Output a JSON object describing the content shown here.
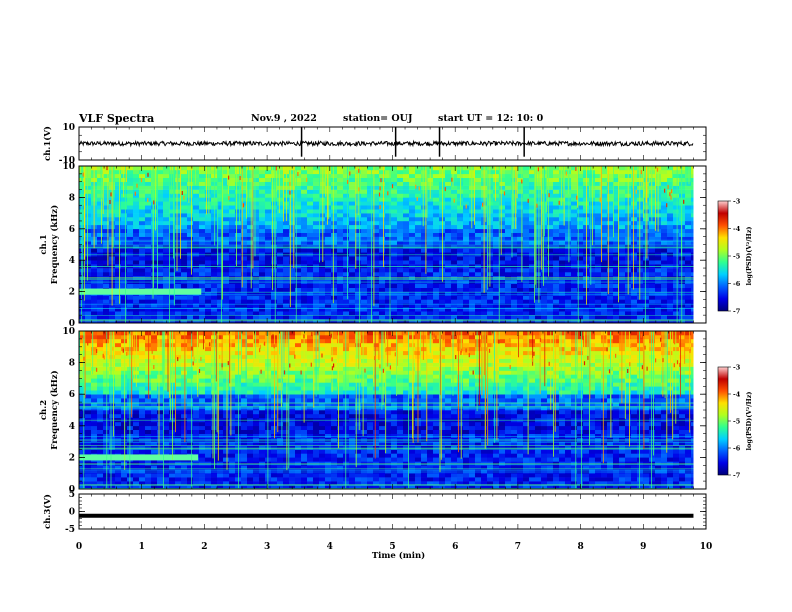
{
  "header": {
    "title": "VLF Spectra",
    "date": "Nov.9  , 2022",
    "station": "station= OUJ",
    "start": "start  UT  =   12: 10: 0"
  },
  "colors": {
    "spectrogram_palette": [
      "#00007a",
      "#0000e6",
      "#0060ff",
      "#00d0ff",
      "#30ff90",
      "#b0ff20",
      "#ffe000",
      "#ff5000",
      "#c00000",
      "#ffd0d0"
    ]
  },
  "chart_data": [
    {
      "type": "line",
      "panel": "ch1-waveform",
      "ylabel": "ch.1(V)",
      "ylim": [
        -10,
        10
      ],
      "ytick_labels": [
        "10",
        "-10"
      ],
      "baseline": 0,
      "impulses_x_min": [
        3.55,
        5.05,
        5.75,
        7.1
      ]
    },
    {
      "type": "heatmap",
      "panel": "ch1-spectrogram",
      "ylabel": "ch.1\nFrequency (kHz)",
      "ylim": [
        0,
        10
      ],
      "ytick_labels": [
        "0",
        "2",
        "4",
        "6",
        "8",
        "10"
      ],
      "xlim": [
        0,
        9.8
      ],
      "band_2kHz_until_min": 1.95,
      "colorbar": {
        "label": "log(PSD)(V²/Hz)",
        "range": [
          -7,
          -3
        ],
        "tick_labels": [
          "-3",
          "-4",
          "-5",
          "-6",
          "-7"
        ]
      }
    },
    {
      "type": "heatmap",
      "panel": "ch2-spectrogram",
      "ylabel": "ch.2\nFrequency (kHz)",
      "ylim": [
        0,
        10
      ],
      "ytick_labels": [
        "0",
        "2",
        "4",
        "6",
        "8",
        "10"
      ],
      "xlim": [
        0,
        9.8
      ],
      "band_2kHz_until_min": 1.9,
      "colorbar": {
        "label": "log(PSD)(V²/Hz)",
        "range": [
          -7,
          -3
        ],
        "tick_labels": [
          "-3",
          "-4",
          "-5",
          "-6",
          "-7"
        ]
      }
    },
    {
      "type": "line",
      "panel": "ch3-waveform",
      "ylabel": "ch.3(V)",
      "ylim": [
        -5,
        5
      ],
      "ytick_labels": [
        "5",
        "0",
        "-5"
      ],
      "baseline": -1.2
    }
  ],
  "xaxis": {
    "label": "Time  (min)",
    "xlim": [
      0,
      10
    ],
    "tick_labels": [
      "0",
      "1",
      "2",
      "3",
      "4",
      "5",
      "6",
      "7",
      "8",
      "9",
      "10"
    ]
  }
}
